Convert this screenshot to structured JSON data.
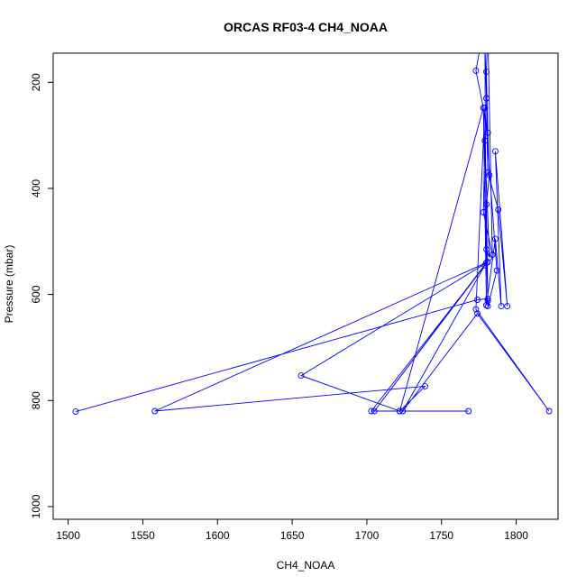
{
  "chart_data": {
    "type": "line",
    "title": "ORCAS RF03-4 CH4_NOAA",
    "xlabel": "CH4_NOAA",
    "ylabel": "Pressure (mbar)",
    "xlim": [
      1500,
      1820
    ],
    "ylim": [
      1000,
      150
    ],
    "y_reversed": true,
    "x_ticks": [
      1500,
      1550,
      1600,
      1650,
      1700,
      1750,
      1800
    ],
    "y_ticks": [
      200,
      400,
      600,
      800,
      1000
    ],
    "grid": false,
    "legend": "none",
    "series": [
      {
        "color": "#0000ff",
        "marker": "open-circle",
        "points": [
          [
            1505,
            821
          ],
          [
            1774,
            610
          ],
          [
            1781,
            608
          ],
          [
            1780,
            515
          ],
          [
            1782,
            530
          ],
          [
            1778,
            248
          ],
          [
            1780,
            620
          ],
          [
            1786,
            495
          ],
          [
            1790,
            622
          ],
          [
            1786,
            330
          ],
          [
            1794,
            622
          ],
          [
            1788,
            440
          ],
          [
            1781,
            370
          ],
          [
            1780,
            230
          ],
          [
            1779,
            120
          ],
          [
            1780,
            620
          ],
          [
            1781,
            612
          ],
          [
            1780,
            430
          ],
          [
            1782,
            375
          ],
          [
            1781,
            295
          ],
          [
            1780,
            180
          ],
          [
            1781,
            100
          ],
          [
            1784,
            525
          ],
          [
            1778,
            445
          ],
          [
            1779,
            310
          ],
          [
            1781,
            622
          ],
          [
            1787,
            555
          ],
          [
            1779,
            248
          ],
          [
            1773,
            628
          ],
          [
            1822,
            820
          ],
          [
            1774,
            636
          ],
          [
            1724,
            820
          ],
          [
            1780,
            540
          ],
          [
            1705,
            820
          ],
          [
            1779,
            545
          ],
          [
            1703,
            820
          ],
          [
            1768,
            820
          ],
          [
            1722,
            820
          ],
          [
            1739,
            773
          ],
          [
            1558,
            820
          ],
          [
            1781,
            539
          ],
          [
            1656,
            753
          ],
          [
            1722,
            820
          ],
          [
            1778,
            248
          ],
          [
            1773,
            178
          ],
          [
            1778,
            100
          ]
        ]
      }
    ]
  }
}
